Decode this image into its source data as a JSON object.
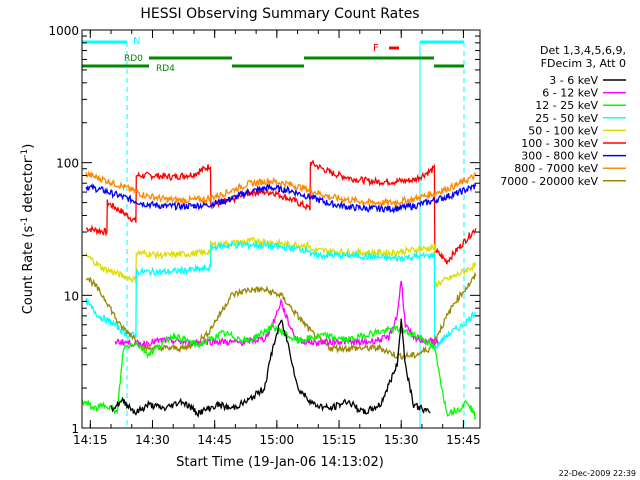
{
  "chart_data": {
    "type": "line",
    "title": "HESSI Observing Summary Count Rates",
    "xlabel": "Start Time (19-Jan-06 14:13:02)",
    "ylabel_main": "Count Rate (s",
    "ylabel_sup1": "-1",
    "ylabel_mid": " detector",
    "ylabel_sup2": "-1",
    "ylabel_end": ")",
    "y_scale": "log",
    "ylim": [
      1,
      1000
    ],
    "xlim_minutes": [
      0,
      96
    ],
    "x_ticks": [
      {
        "t": 2,
        "label": "14:15"
      },
      {
        "t": 17,
        "label": "14:30"
      },
      {
        "t": 32,
        "label": "14:45"
      },
      {
        "t": 47,
        "label": "15:00"
      },
      {
        "t": 62,
        "label": "15:15"
      },
      {
        "t": 77,
        "label": "15:30"
      },
      {
        "t": 92,
        "label": "15:45"
      }
    ],
    "y_ticks": [
      {
        "v": 1,
        "label": "1"
      },
      {
        "v": 10,
        "label": "10"
      },
      {
        "v": 100,
        "label": "100"
      },
      {
        "v": 1000,
        "label": "1000"
      }
    ],
    "legend": {
      "position": "right",
      "header": [
        "Det 1,3,4,5,6,9,",
        "FDecim 3, Att 0"
      ],
      "entries": [
        {
          "label": "3 - 6 keV",
          "color": "#000000"
        },
        {
          "label": "6 - 12 keV",
          "color": "#ff00ff"
        },
        {
          "label": "12 - 25 keV",
          "color": "#00ff00"
        },
        {
          "label": "25 - 50 keV",
          "color": "#00ffff"
        },
        {
          "label": "50 - 100 keV",
          "color": "#dddd00"
        },
        {
          "label": "100 - 300 keV",
          "color": "#ff0000"
        },
        {
          "label": "300 - 800 keV",
          "color": "#0000ff"
        },
        {
          "label": "800 - 7000 keV",
          "color": "#ff8800"
        },
        {
          "label": "7000 - 20000 keV",
          "color": "#998800"
        }
      ]
    },
    "series": [
      {
        "name": "100 - 300 keV",
        "color": "#ff0000",
        "t": [
          1,
          6,
          6.1,
          10,
          13,
          13.1,
          17,
          22,
          27,
          31,
          31.1,
          36,
          41,
          46,
          51,
          55,
          55.1,
          60,
          65,
          70,
          75,
          80,
          85,
          85.1,
          88,
          92,
          95
        ],
        "v": [
          32,
          30,
          50,
          42,
          36,
          80,
          80,
          78,
          82,
          95,
          48,
          52,
          60,
          60,
          52,
          45,
          100,
          84,
          76,
          72,
          72,
          74,
          90,
          22,
          18,
          25,
          32
        ]
      },
      {
        "name": "300 - 800 keV",
        "color": "#0000ff",
        "t": [
          1,
          5,
          10,
          15,
          20,
          25,
          30,
          35,
          40,
          45,
          50,
          55,
          60,
          65,
          70,
          75,
          80,
          85,
          90,
          95
        ],
        "v": [
          66,
          62,
          55,
          49,
          47,
          47,
          48,
          52,
          60,
          65,
          62,
          55,
          49,
          46,
          45,
          45,
          47,
          52,
          58,
          67
        ]
      },
      {
        "name": "800 - 7000 keV",
        "color": "#ff8800",
        "t": [
          1,
          5,
          10,
          15,
          20,
          25,
          30,
          35,
          40,
          45,
          50,
          55,
          60,
          65,
          70,
          75,
          80,
          85,
          90,
          95
        ],
        "v": [
          82,
          75,
          66,
          57,
          53,
          52,
          53,
          60,
          69,
          73,
          69,
          62,
          55,
          52,
          50,
          50,
          53,
          59,
          67,
          80
        ]
      },
      {
        "name": "50 - 100 keV",
        "color": "#dddd00",
        "t": [
          1,
          5,
          10,
          13,
          13.1,
          20,
          30,
          31,
          31.1,
          38,
          42,
          46,
          50,
          55,
          55.1,
          65,
          75,
          80,
          85,
          85.1,
          90,
          95
        ],
        "v": [
          20,
          16,
          14,
          13,
          21,
          20,
          21,
          22,
          24,
          25,
          26,
          25,
          24,
          24,
          22,
          21,
          21,
          22,
          23,
          12,
          14,
          17
        ]
      },
      {
        "name": "25 - 50 keV",
        "color": "#00ffff",
        "t": [
          1,
          4,
          8,
          11,
          13,
          13.1,
          20,
          31,
          31.1,
          36,
          42,
          48,
          55,
          55.1,
          65,
          75,
          85,
          85.1,
          88,
          92,
          95
        ],
        "v": [
          9,
          7,
          6,
          5,
          5,
          15,
          15,
          16,
          23,
          24,
          24,
          23,
          22,
          20,
          20,
          19,
          20,
          4,
          5,
          6,
          7.5
        ]
      },
      {
        "name": "7000 - 20000 keV",
        "color": "#998800",
        "t": [
          1,
          3,
          6,
          9,
          12,
          15,
          20,
          25,
          30,
          33,
          36,
          40,
          44,
          48,
          52,
          56,
          60,
          64,
          68,
          72,
          76,
          80,
          84,
          87,
          90,
          95
        ],
        "v": [
          14,
          12,
          9,
          6,
          5,
          4,
          4,
          4,
          5,
          7,
          10,
          11,
          11,
          10,
          7,
          5,
          4,
          4,
          4,
          4,
          3.5,
          3.5,
          4,
          6,
          9,
          14
        ]
      },
      {
        "name": "6 - 12 keV",
        "color": "#ff00ff",
        "t": [
          8,
          14,
          20,
          26,
          32,
          38,
          44,
          46,
          48,
          50,
          52,
          56,
          62,
          68,
          74,
          76,
          77,
          78,
          80,
          84,
          86
        ],
        "v": [
          4.5,
          4.3,
          4.6,
          4.4,
          4.5,
          4.4,
          4.7,
          6,
          9,
          6,
          4.6,
          4.4,
          4.5,
          4.4,
          4.8,
          7,
          13,
          6,
          4.7,
          4.5,
          4.4
        ]
      },
      {
        "name": "12 - 25 keV",
        "color": "#00ff00",
        "t": [
          0,
          3,
          6,
          8.5,
          10,
          13,
          16,
          22,
          28,
          34,
          40,
          46,
          52,
          58,
          64,
          70,
          76,
          82,
          85,
          88,
          91,
          93,
          95
        ],
        "v": [
          1.6,
          1.4,
          1.5,
          1.3,
          4,
          4.4,
          3.6,
          5,
          4.2,
          5.2,
          4.5,
          5.8,
          4.5,
          5,
          4.6,
          5.2,
          5.6,
          4.8,
          4,
          1.3,
          1.4,
          1.6,
          1.2
        ]
      },
      {
        "name": "3 - 6 keV",
        "color": "#000000",
        "t": [
          7,
          10,
          13,
          16,
          20,
          24,
          28,
          33,
          36,
          40,
          44,
          46,
          48,
          50,
          52,
          56,
          60,
          64,
          68,
          72,
          76,
          77,
          78,
          80,
          84
        ],
        "v": [
          1.4,
          1.6,
          1.3,
          1.5,
          1.4,
          1.6,
          1.3,
          1.5,
          1.4,
          1.6,
          2,
          4,
          6.5,
          4,
          2,
          1.5,
          1.4,
          1.6,
          1.3,
          1.5,
          3,
          6.5,
          3,
          1.5,
          1.3
        ]
      }
    ],
    "annotations": {
      "night_label": "N",
      "flare_label": "F",
      "rd0_label": "RD0",
      "rd4_label": "RD4"
    },
    "footer_date": "22-Dec-2009 22:39"
  }
}
